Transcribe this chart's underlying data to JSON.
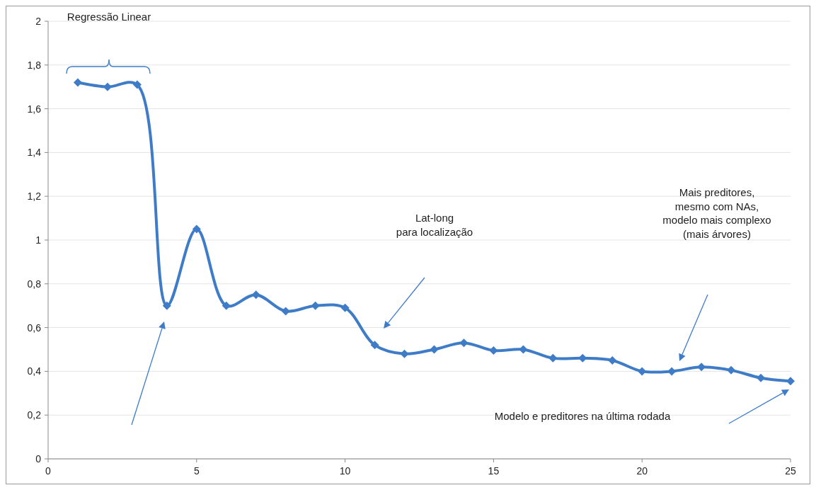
{
  "chart_data": {
    "type": "line",
    "x": [
      1,
      2,
      3,
      4,
      5,
      6,
      7,
      8,
      9,
      10,
      11,
      12,
      13,
      14,
      15,
      16,
      17,
      18,
      19,
      20,
      21,
      22,
      23,
      24,
      25
    ],
    "series": [
      {
        "color": "#3f7cc8",
        "values": [
          1.72,
          1.7,
          1.71,
          0.7,
          1.05,
          0.7,
          0.75,
          0.675,
          0.7,
          0.69,
          0.52,
          0.48,
          0.5,
          0.53,
          0.495,
          0.5,
          0.46,
          0.46,
          0.45,
          0.4,
          0.4,
          0.42,
          0.405,
          0.37,
          0.355
        ]
      }
    ],
    "xlim": [
      0,
      25
    ],
    "xticks": [
      0,
      5,
      10,
      15,
      20,
      25
    ],
    "ylim": [
      0,
      2
    ],
    "yticks": [
      0,
      {
        "value": 0.2,
        "label": "0,2"
      },
      {
        "value": 0.4,
        "label": "0,4"
      },
      {
        "value": 0.6,
        "label": "0,6"
      },
      {
        "value": 0.8,
        "label": "0,8"
      },
      1,
      {
        "value": 1.2,
        "label": "1,2"
      },
      {
        "value": 1.4,
        "label": "1,4"
      },
      {
        "value": 1.6,
        "label": "1,6"
      },
      {
        "value": 1.8,
        "label": "1,8"
      },
      2
    ],
    "grid": "y",
    "marker": "diamond",
    "line_style": "solid",
    "annotations": [
      "Regressão Linear",
      "Lat-long\npara localização",
      "Mais preditores,\nmesmo com NAs,\nmodelo mais complexo\n(mais árvores)",
      "Modelo e preditores na última rodada"
    ]
  }
}
